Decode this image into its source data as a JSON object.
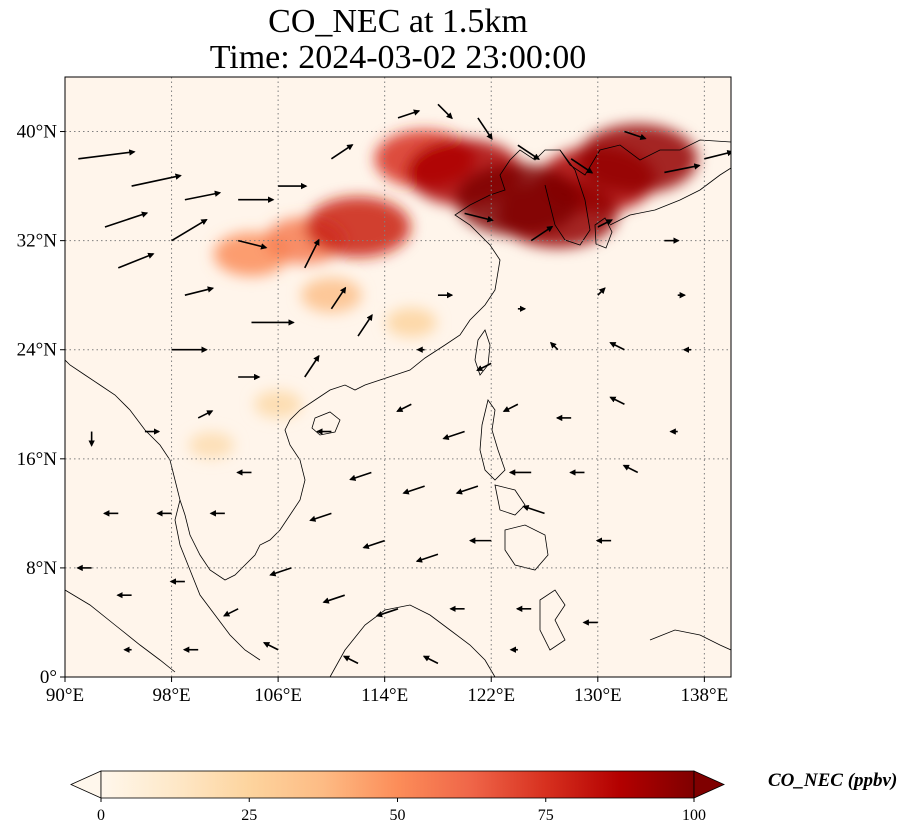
{
  "title": {
    "line1": "CO_NEC at 1.5km",
    "line2": "Time: 2024-03-02 23:00:00"
  },
  "map": {
    "lon_range": [
      90,
      140
    ],
    "lat_range": [
      0,
      44
    ],
    "x_ticks": [
      "90°E",
      "98°E",
      "106°E",
      "114°E",
      "122°E",
      "130°E",
      "138°E"
    ],
    "x_tick_values": [
      90,
      98,
      106,
      114,
      122,
      130,
      138
    ],
    "y_ticks": [
      "0°",
      "8°N",
      "16°N",
      "24°N",
      "32°N",
      "40°N"
    ],
    "y_tick_values": [
      0,
      8,
      16,
      24,
      32,
      40
    ],
    "grid": true,
    "background_color": "#fff5eb",
    "coastline_color": "#000000"
  },
  "colorbar": {
    "label": "CO_NEC (ppbv)",
    "ticks": [
      "0",
      "25",
      "50",
      "75",
      "100"
    ],
    "tick_values": [
      0,
      25,
      50,
      75,
      100
    ],
    "range": [
      0,
      100
    ],
    "colormap": "OrRd",
    "colors": [
      "#fff7ec",
      "#fee8c8",
      "#fdd49e",
      "#fdbb84",
      "#fc8d59",
      "#ef6548",
      "#d7301f",
      "#b30000",
      "#7f0000"
    ],
    "extend": "both"
  },
  "chart_data": {
    "type": "heatmap",
    "variable": "CO_NEC",
    "units": "ppbv",
    "plumes": [
      {
        "lon": 124,
        "lat": 35,
        "value": 100
      },
      {
        "lon": 127,
        "lat": 34,
        "value": 95
      },
      {
        "lon": 130,
        "lat": 36.5,
        "value": 90
      },
      {
        "lon": 133,
        "lat": 38,
        "value": 95
      },
      {
        "lon": 120,
        "lat": 37,
        "value": 90
      },
      {
        "lon": 117,
        "lat": 38,
        "value": 75
      },
      {
        "lon": 112,
        "lat": 33,
        "value": 80
      },
      {
        "lon": 108,
        "lat": 32,
        "value": 55
      },
      {
        "lon": 104,
        "lat": 31,
        "value": 50
      },
      {
        "lon": 110,
        "lat": 28,
        "value": 35
      },
      {
        "lon": 116,
        "lat": 26,
        "value": 25
      },
      {
        "lon": 106,
        "lat": 20,
        "value": 22
      },
      {
        "lon": 101,
        "lat": 17,
        "value": 20
      }
    ],
    "wind_vectors": [
      {
        "lon": 91,
        "lat": 38,
        "u": 8,
        "v": 1
      },
      {
        "lon": 95,
        "lat": 36,
        "u": 7,
        "v": 1.5
      },
      {
        "lon": 99,
        "lat": 35,
        "u": 5,
        "v": 1
      },
      {
        "lon": 103,
        "lat": 35,
        "u": 5,
        "v": 0
      },
      {
        "lon": 93,
        "lat": 33,
        "u": 6,
        "v": 2
      },
      {
        "lon": 98,
        "lat": 32,
        "u": 5,
        "v": 3
      },
      {
        "lon": 103,
        "lat": 32,
        "u": 4,
        "v": -1
      },
      {
        "lon": 94,
        "lat": 30,
        "u": 5,
        "v": 2
      },
      {
        "lon": 99,
        "lat": 28,
        "u": 4,
        "v": 1
      },
      {
        "lon": 104,
        "lat": 26,
        "u": 6,
        "v": 0
      },
      {
        "lon": 98,
        "lat": 24,
        "u": 5,
        "v": 0
      },
      {
        "lon": 103,
        "lat": 22,
        "u": 3,
        "v": 0
      },
      {
        "lon": 108,
        "lat": 30,
        "u": 2,
        "v": 4
      },
      {
        "lon": 110,
        "lat": 27,
        "u": 2,
        "v": 3
      },
      {
        "lon": 112,
        "lat": 25,
        "u": 2,
        "v": 3
      },
      {
        "lon": 108,
        "lat": 22,
        "u": 2,
        "v": 3
      },
      {
        "lon": 106,
        "lat": 36,
        "u": 4,
        "v": 0
      },
      {
        "lon": 110,
        "lat": 38,
        "u": 3,
        "v": 2
      },
      {
        "lon": 115,
        "lat": 41,
        "u": 3,
        "v": 1
      },
      {
        "lon": 118,
        "lat": 42,
        "u": 2,
        "v": -2
      },
      {
        "lon": 121,
        "lat": 41,
        "u": 2,
        "v": -3
      },
      {
        "lon": 124,
        "lat": 39,
        "u": 3,
        "v": -2
      },
      {
        "lon": 128,
        "lat": 38,
        "u": 3,
        "v": -2
      },
      {
        "lon": 132,
        "lat": 40,
        "u": 3,
        "v": -1
      },
      {
        "lon": 135,
        "lat": 37,
        "u": 5,
        "v": 1
      },
      {
        "lon": 138,
        "lat": 38,
        "u": 4,
        "v": 1
      },
      {
        "lon": 120,
        "lat": 34,
        "u": 4,
        "v": -1
      },
      {
        "lon": 125,
        "lat": 32,
        "u": 3,
        "v": 2
      },
      {
        "lon": 130,
        "lat": 33,
        "u": 2,
        "v": 1
      },
      {
        "lon": 135,
        "lat": 32,
        "u": 2,
        "v": 0
      },
      {
        "lon": 118,
        "lat": 28,
        "u": 2,
        "v": 0
      },
      {
        "lon": 124,
        "lat": 27,
        "u": 1,
        "v": 0
      },
      {
        "lon": 130,
        "lat": 28,
        "u": 1,
        "v": 1
      },
      {
        "lon": 136,
        "lat": 28,
        "u": 1,
        "v": 0
      },
      {
        "lon": 116,
        "lat": 20,
        "u": -2,
        "v": -1
      },
      {
        "lon": 120,
        "lat": 18,
        "u": -3,
        "v": -1
      },
      {
        "lon": 124,
        "lat": 20,
        "u": -2,
        "v": -1
      },
      {
        "lon": 128,
        "lat": 19,
        "u": -2,
        "v": 0
      },
      {
        "lon": 132,
        "lat": 20,
        "u": -2,
        "v": 1
      },
      {
        "lon": 136,
        "lat": 18,
        "u": -1,
        "v": 0
      },
      {
        "lon": 110,
        "lat": 18,
        "u": -2,
        "v": 0
      },
      {
        "lon": 113,
        "lat": 15,
        "u": -3,
        "v": -1
      },
      {
        "lon": 117,
        "lat": 14,
        "u": -3,
        "v": -1
      },
      {
        "lon": 121,
        "lat": 14,
        "u": -3,
        "v": -1
      },
      {
        "lon": 125,
        "lat": 15,
        "u": -3,
        "v": 0
      },
      {
        "lon": 129,
        "lat": 15,
        "u": -2,
        "v": 0
      },
      {
        "lon": 133,
        "lat": 15,
        "u": -2,
        "v": 1
      },
      {
        "lon": 110,
        "lat": 12,
        "u": -3,
        "v": -1
      },
      {
        "lon": 114,
        "lat": 10,
        "u": -3,
        "v": -1
      },
      {
        "lon": 118,
        "lat": 9,
        "u": -3,
        "v": -1
      },
      {
        "lon": 122,
        "lat": 10,
        "u": -3,
        "v": 0
      },
      {
        "lon": 126,
        "lat": 12,
        "u": -3,
        "v": 1
      },
      {
        "lon": 131,
        "lat": 10,
        "u": -2,
        "v": 0
      },
      {
        "lon": 107,
        "lat": 8,
        "u": -3,
        "v": -1
      },
      {
        "lon": 111,
        "lat": 6,
        "u": -3,
        "v": -1
      },
      {
        "lon": 115,
        "lat": 5,
        "u": -3,
        "v": -1
      },
      {
        "lon": 120,
        "lat": 5,
        "u": -2,
        "v": 0
      },
      {
        "lon": 125,
        "lat": 5,
        "u": -2,
        "v": 0
      },
      {
        "lon": 130,
        "lat": 4,
        "u": -2,
        "v": 0
      },
      {
        "lon": 103,
        "lat": 5,
        "u": -2,
        "v": -1
      },
      {
        "lon": 99,
        "lat": 7,
        "u": -2,
        "v": 0
      },
      {
        "lon": 95,
        "lat": 6,
        "u": -2,
        "v": 0
      },
      {
        "lon": 92,
        "lat": 8,
        "u": -2,
        "v": 0
      },
      {
        "lon": 95,
        "lat": 2,
        "u": -1,
        "v": 0
      },
      {
        "lon": 100,
        "lat": 2,
        "u": -2,
        "v": 0
      },
      {
        "lon": 106,
        "lat": 2,
        "u": -2,
        "v": 1
      },
      {
        "lon": 112,
        "lat": 1,
        "u": -2,
        "v": 1
      },
      {
        "lon": 118,
        "lat": 1,
        "u": -2,
        "v": 1
      },
      {
        "lon": 124,
        "lat": 2,
        "u": -1,
        "v": 0
      },
      {
        "lon": 102,
        "lat": 12,
        "u": -2,
        "v": 0
      },
      {
        "lon": 98,
        "lat": 12,
        "u": -2,
        "v": 0
      },
      {
        "lon": 94,
        "lat": 12,
        "u": -2,
        "v": 0
      },
      {
        "lon": 92,
        "lat": 18,
        "u": 0,
        "v": -2
      },
      {
        "lon": 96,
        "lat": 18,
        "u": 2,
        "v": 0
      },
      {
        "lon": 100,
        "lat": 19,
        "u": 2,
        "v": 1
      },
      {
        "lon": 104,
        "lat": 15,
        "u": -2,
        "v": 0
      },
      {
        "lon": 137,
        "lat": 24,
        "u": -1,
        "v": 0
      },
      {
        "lon": 132,
        "lat": 24,
        "u": -2,
        "v": 1
      },
      {
        "lon": 127,
        "lat": 24,
        "u": -1,
        "v": 1
      },
      {
        "lon": 122,
        "lat": 23,
        "u": -2,
        "v": -1
      },
      {
        "lon": 117,
        "lat": 24,
        "u": -1,
        "v": 0
      }
    ]
  }
}
